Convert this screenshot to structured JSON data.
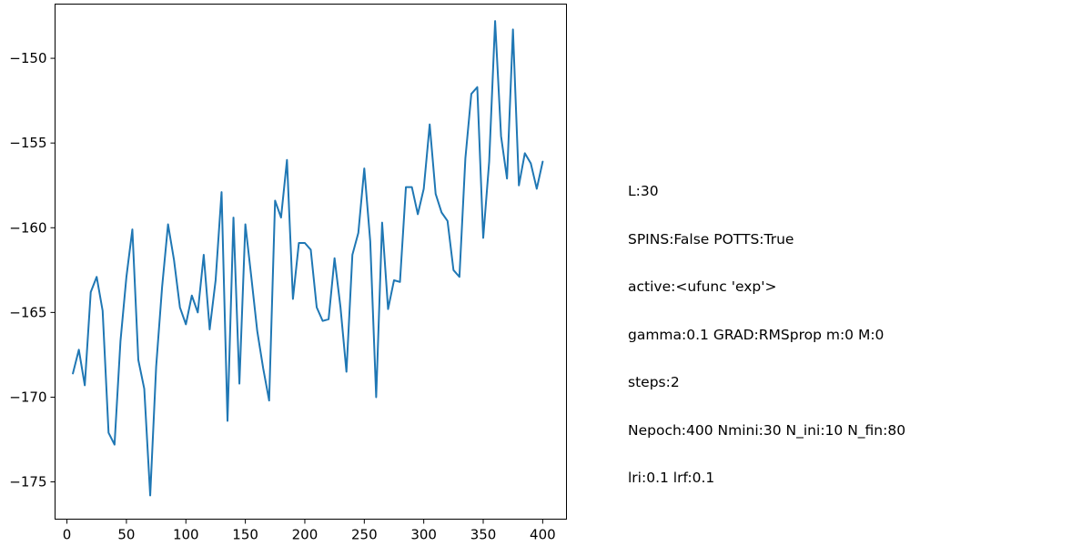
{
  "chart_data": {
    "type": "line",
    "title": "",
    "xlabel": "",
    "ylabel": "",
    "xlim": [
      -10,
      420
    ],
    "ylim": [
      -177.2,
      -146.8
    ],
    "x_ticks": [
      0,
      50,
      100,
      150,
      200,
      250,
      300,
      350,
      400
    ],
    "y_ticks": [
      -150,
      -155,
      -160,
      -165,
      -170,
      -175
    ],
    "x_tick_labels": [
      "0",
      "50",
      "100",
      "150",
      "200",
      "250",
      "300",
      "350",
      "400"
    ],
    "y_tick_labels": [
      "−150",
      "−155",
      "−160",
      "−165",
      "−170",
      "−175"
    ],
    "grid": false,
    "line_color": "#1f77b4",
    "series": [
      {
        "x": [
          5,
          10,
          15,
          20,
          25,
          30,
          35,
          40,
          45,
          50,
          55,
          60,
          65,
          70,
          75,
          80,
          85,
          90,
          95,
          100,
          105,
          110,
          115,
          120,
          125,
          130,
          135,
          140,
          145,
          150,
          155,
          160,
          165,
          170,
          175,
          180,
          185,
          190,
          195,
          200,
          205,
          210,
          215,
          220,
          225,
          230,
          235,
          240,
          245,
          250,
          255,
          260,
          265,
          270,
          275,
          280,
          285,
          290,
          295,
          300,
          305,
          310,
          315,
          320,
          325,
          330,
          335,
          340,
          345,
          350,
          355,
          360,
          365,
          370,
          375,
          380,
          385,
          390,
          395,
          400
        ],
        "y": [
          -168.6,
          -167.2,
          -169.3,
          -163.8,
          -162.9,
          -164.9,
          -172.1,
          -172.8,
          -166.7,
          -162.9,
          -160.1,
          -167.8,
          -169.5,
          -175.8,
          -168.2,
          -163.5,
          -159.8,
          -161.9,
          -164.7,
          -165.7,
          -164.0,
          -165.0,
          -161.6,
          -166.0,
          -163.1,
          -157.9,
          -171.4,
          -159.4,
          -169.2,
          -159.8,
          -162.9,
          -166.1,
          -168.3,
          -170.2,
          -158.4,
          -159.4,
          -156.0,
          -164.2,
          -160.9,
          -160.9,
          -161.3,
          -164.7,
          -165.5,
          -165.4,
          -161.8,
          -164.7,
          -168.5,
          -161.6,
          -160.3,
          -156.5,
          -160.8,
          -170.0,
          -159.7,
          -164.8,
          -163.1,
          -163.2,
          -157.6,
          -157.6,
          -159.2,
          -157.7,
          -153.9,
          -158.0,
          -159.1,
          -159.6,
          -162.5,
          -162.9,
          -155.9,
          -152.1,
          -151.7,
          -160.6,
          -156.1,
          -147.8,
          -154.6,
          -157.1,
          -148.3,
          -157.5,
          -155.6,
          -156.2,
          -157.7,
          -156.1
        ]
      }
    ]
  },
  "info_text": [
    "L:30",
    "SPINS:False POTTS:True",
    "active:<ufunc 'exp'>",
    "gamma:0.1 GRAD:RMSprop m:0 M:0",
    "steps:2",
    "Nepoch:400 Nmini:30 N_ini:10 N_fin:80",
    "lri:0.1 lrf:0.1"
  ]
}
